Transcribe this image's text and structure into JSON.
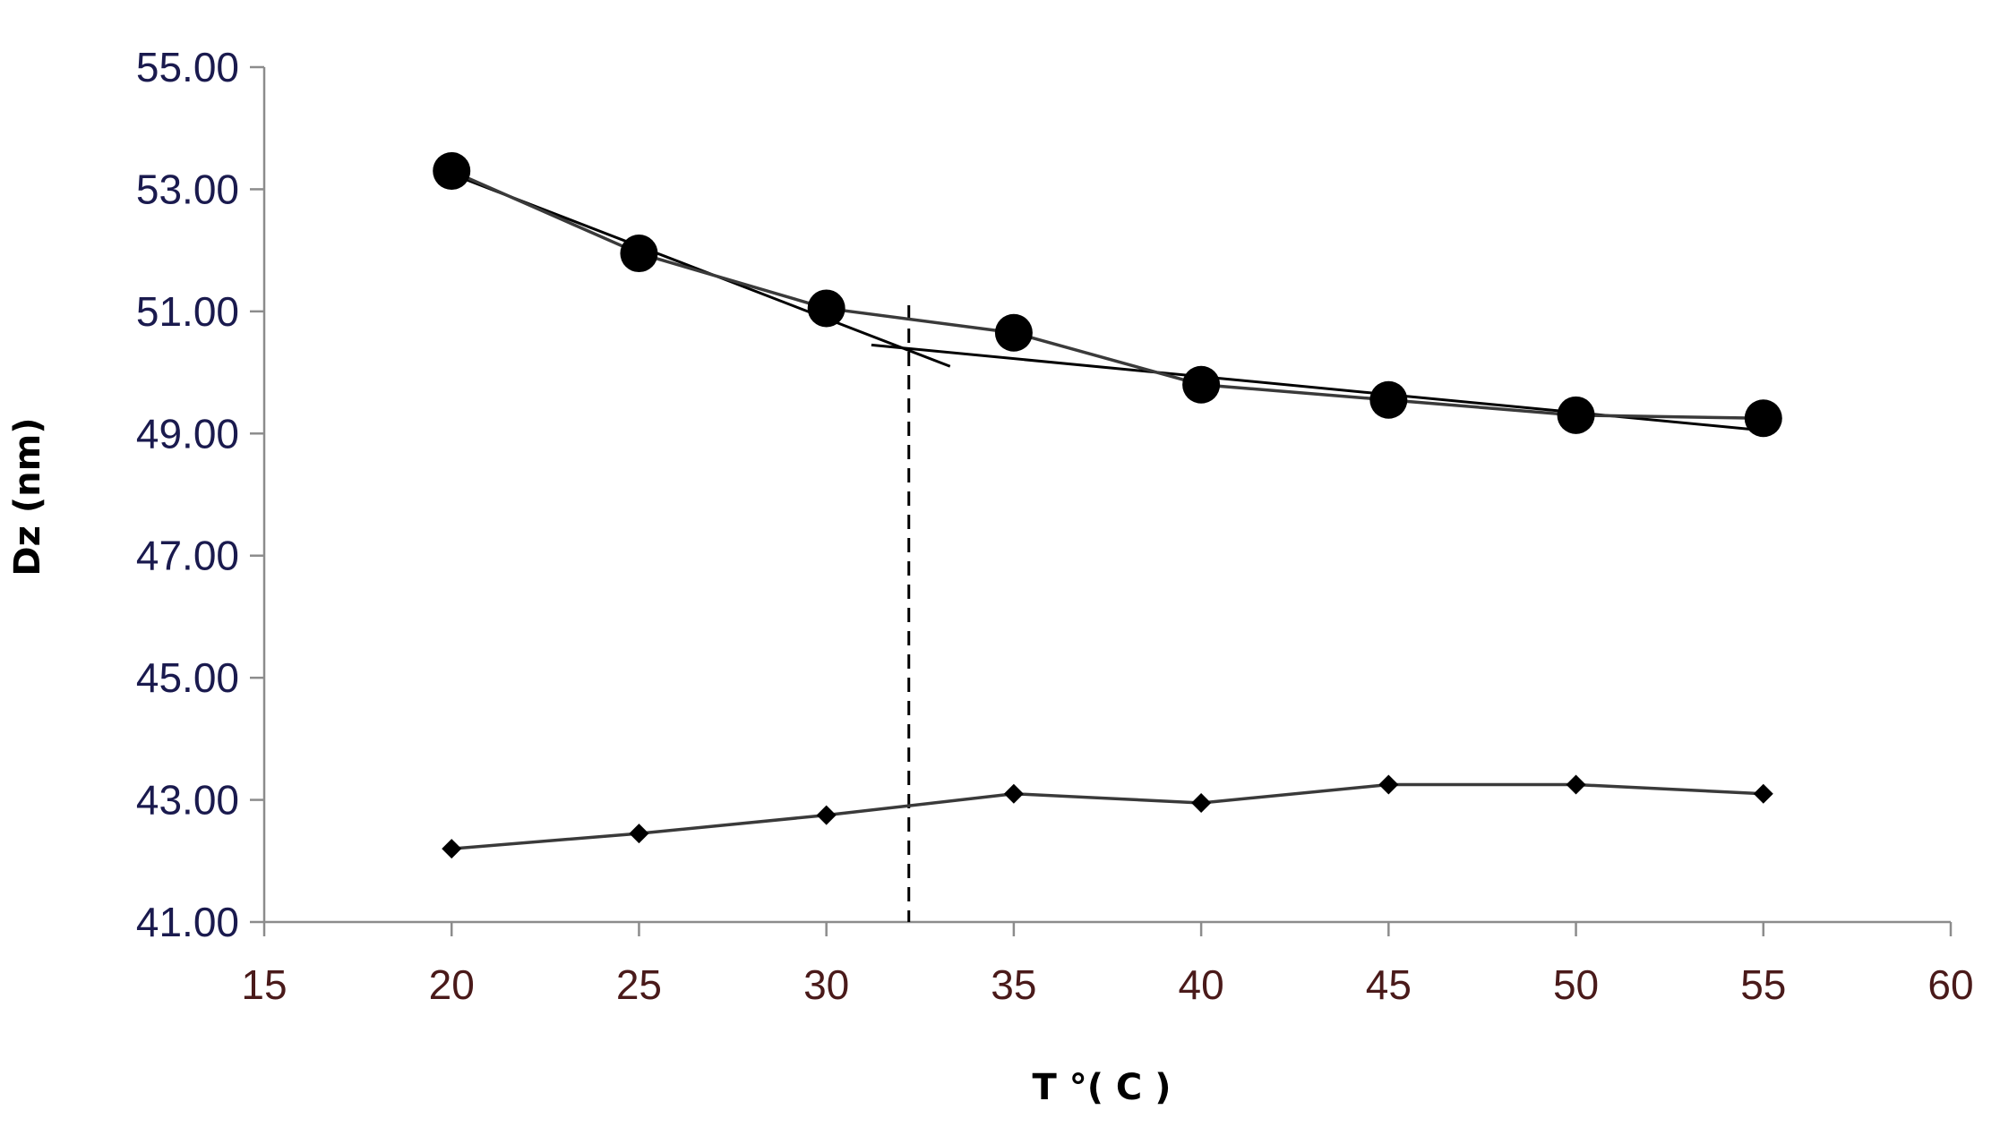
{
  "chart_data": {
    "type": "line",
    "title": "",
    "xlabel": "T °( C )",
    "ylabel": "Dz (nm)",
    "xlim": [
      15,
      60
    ],
    "ylim": [
      41,
      55
    ],
    "x_ticks": [
      15,
      20,
      25,
      30,
      35,
      40,
      45,
      50,
      55,
      60
    ],
    "y_ticks": [
      41,
      43,
      45,
      47,
      49,
      51,
      53,
      55
    ],
    "y_tick_labels": [
      "41.00",
      "43.00",
      "45.00",
      "47.00",
      "49.00",
      "51.00",
      "53.00",
      "55.00"
    ],
    "grid": false,
    "legend": "none",
    "series": [
      {
        "marker": "circle",
        "x": [
          20,
          25,
          30,
          35,
          40,
          45,
          50,
          55
        ],
        "y": [
          53.3,
          51.95,
          51.05,
          50.65,
          49.8,
          49.55,
          49.3,
          49.25
        ]
      },
      {
        "marker": "diamond",
        "x": [
          20,
          25,
          30,
          35,
          40,
          45,
          50,
          55
        ],
        "y": [
          42.2,
          42.45,
          42.75,
          43.1,
          42.95,
          43.25,
          43.25,
          43.1
        ]
      }
    ],
    "trend_lines": [
      {
        "x": [
          20,
          33.3
        ],
        "y": [
          53.25,
          50.1
        ]
      },
      {
        "x": [
          31.2,
          55
        ],
        "y": [
          50.45,
          49.05
        ]
      }
    ],
    "vertical_marker": {
      "x": 32.2,
      "y_top": 51.1,
      "style": "dashed"
    }
  }
}
